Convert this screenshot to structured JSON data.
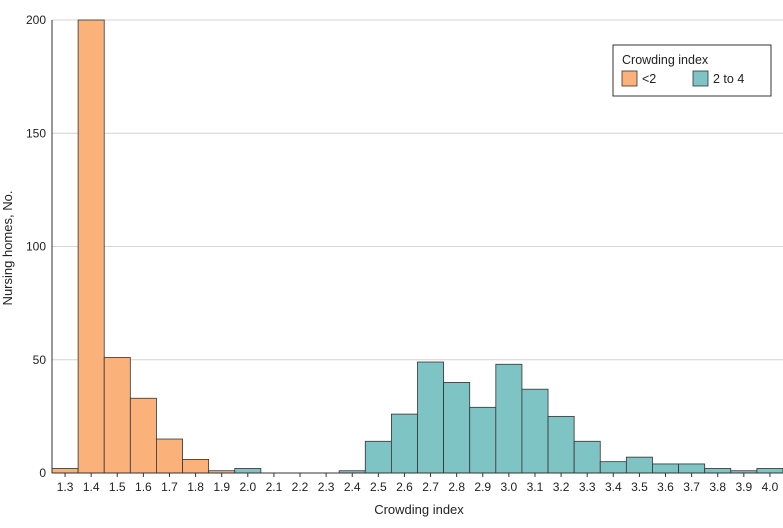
{
  "chart_data": {
    "type": "bar",
    "xlabel": "Crowding index",
    "ylabel": "Nursing homes, No.",
    "ylim": [
      0,
      200
    ],
    "yticks": [
      0,
      50,
      100,
      150,
      200
    ],
    "grid": "horizontal",
    "legend": {
      "title": "Crowding index",
      "placement": "top-right"
    },
    "categories": [
      "1.3",
      "1.4",
      "1.5",
      "1.6",
      "1.7",
      "1.8",
      "1.9",
      "2.0",
      "2.1",
      "2.2",
      "2.3",
      "2.4",
      "2.5",
      "2.6",
      "2.7",
      "2.8",
      "2.9",
      "3.0",
      "3.1",
      "3.2",
      "3.3",
      "3.4",
      "3.5",
      "3.6",
      "3.7",
      "3.8",
      "3.9",
      "4.0"
    ],
    "series": [
      {
        "name": "<2",
        "color": "#FBB27A",
        "values": [
          2,
          200,
          51,
          33,
          15,
          6,
          1,
          0,
          0,
          0,
          0,
          0,
          0,
          0,
          0,
          0,
          0,
          0,
          0,
          0,
          0,
          0,
          0,
          0,
          0,
          0,
          0,
          0
        ]
      },
      {
        "name": "2 to 4",
        "color": "#7EC4C4",
        "values": [
          0,
          0,
          0,
          0,
          0,
          0,
          0,
          2,
          0,
          0,
          0,
          1,
          14,
          26,
          49,
          40,
          29,
          48,
          37,
          25,
          14,
          5,
          7,
          4,
          4,
          2,
          1,
          2
        ]
      }
    ]
  }
}
